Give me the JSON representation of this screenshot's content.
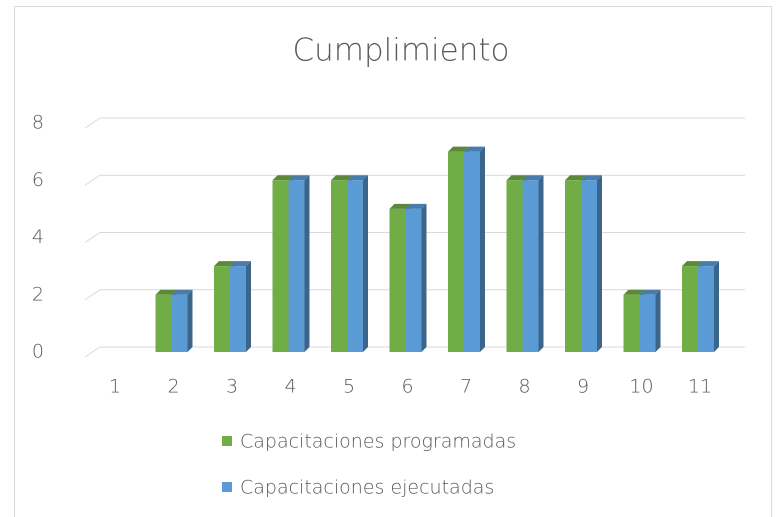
{
  "chart_data": {
    "type": "bar3d",
    "title": "Cumplimiento",
    "categories": [
      "1",
      "2",
      "3",
      "4",
      "5",
      "6",
      "7",
      "8",
      "9",
      "10",
      "11"
    ],
    "series": [
      {
        "name": "Capacitaciones programadas",
        "color": "#70ad47",
        "values": [
          0,
          2,
          3,
          6,
          6,
          5,
          7,
          6,
          6,
          2,
          3
        ]
      },
      {
        "name": "Capacitaciones ejecutadas",
        "color": "#5b9bd5",
        "values": [
          0,
          2,
          3,
          6,
          6,
          5,
          7,
          6,
          6,
          2,
          3
        ]
      }
    ],
    "ylim": [
      0,
      8
    ],
    "yticks": [
      0,
      2,
      4,
      6,
      8
    ],
    "grid": true,
    "legend": "bottom"
  }
}
